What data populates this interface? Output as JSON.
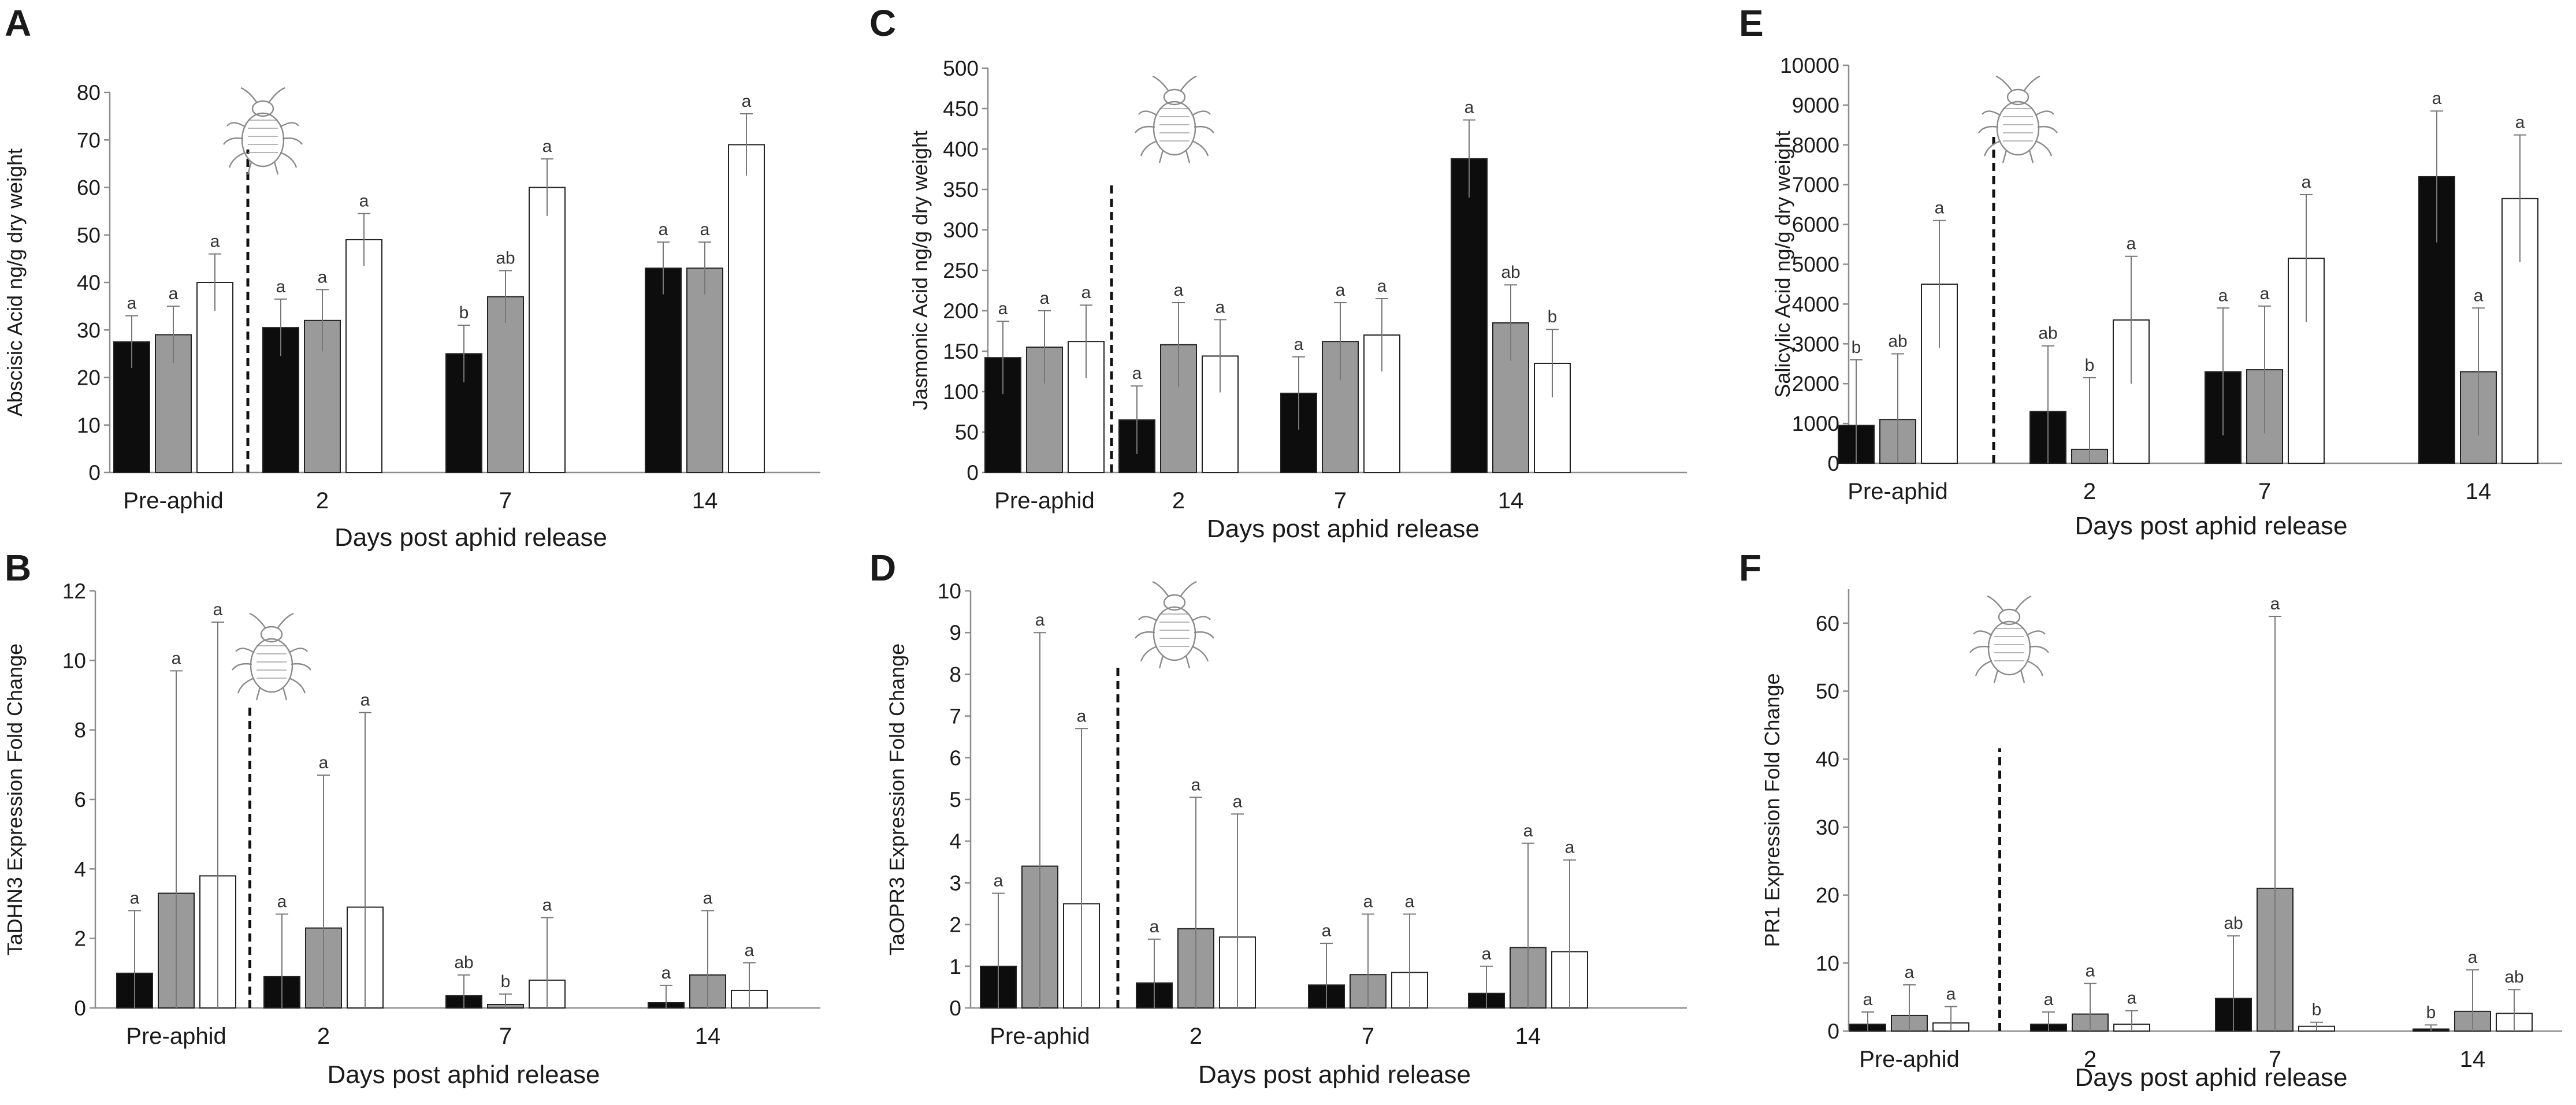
{
  "colors": {
    "control": "#0d0d0d",
    "treatment1": "#9a9a9a",
    "treatment2": "#ffffff",
    "axis": "#8c8c8c",
    "text": "#1a1a1a"
  },
  "icon": "aphid-icon",
  "chart_data": [
    {
      "panel": "A",
      "type": "bar",
      "ylabel": "Abscisic Acid ng/g dry weight",
      "xlabel": "Days post aphid release",
      "categories": [
        "Pre-aphid",
        "2",
        "7",
        "14"
      ],
      "ylim": [
        0,
        80
      ],
      "yticks": [
        0,
        10,
        20,
        30,
        40,
        50,
        60,
        70,
        80
      ],
      "series": [
        {
          "name": "series1",
          "values": [
            27.5,
            30.5,
            25,
            43
          ],
          "errors": [
            5.5,
            6,
            6,
            5.5
          ],
          "letters": [
            "a",
            "a",
            "b",
            "a"
          ]
        },
        {
          "name": "series2",
          "values": [
            29,
            32,
            37,
            43
          ],
          "errors": [
            6,
            6.5,
            5.5,
            5.5
          ],
          "letters": [
            "a",
            "a",
            "ab",
            "a"
          ]
        },
        {
          "name": "series3",
          "values": [
            40,
            49,
            60,
            69
          ],
          "errors": [
            6,
            5.5,
            6,
            6.5
          ],
          "letters": [
            "a",
            "a",
            "a",
            "a"
          ]
        }
      ]
    },
    {
      "panel": "B",
      "type": "bar",
      "ylabel": "TaDHN3 Expression Fold Change",
      "xlabel": "Days post aphid release",
      "categories": [
        "Pre-aphid",
        "2",
        "7",
        "14"
      ],
      "ylim": [
        0,
        12
      ],
      "yticks": [
        0,
        2,
        4,
        6,
        8,
        10,
        12
      ],
      "series": [
        {
          "name": "series1",
          "values": [
            1,
            0.9,
            0.35,
            0.15
          ],
          "errors": [
            1.8,
            1.8,
            0.6,
            0.5
          ],
          "letters": [
            "a",
            "a",
            "ab",
            "a"
          ]
        },
        {
          "name": "series2",
          "values": [
            3.3,
            2.3,
            0.1,
            0.95
          ],
          "errors": [
            6.4,
            4.4,
            0.3,
            1.85
          ],
          "letters": [
            "a",
            "a",
            "b",
            "a"
          ]
        },
        {
          "name": "series3",
          "values": [
            3.8,
            2.9,
            0.8,
            0.5
          ],
          "errors": [
            7.3,
            5.6,
            1.8,
            0.8
          ],
          "letters": [
            "a",
            "a",
            "a",
            "a"
          ]
        }
      ]
    },
    {
      "panel": "C",
      "type": "bar",
      "ylabel": "Jasmonic Acid ng/g dry weight",
      "xlabel": "Days post aphid release",
      "categories": [
        "Pre-aphid",
        "2",
        "7",
        "14"
      ],
      "ylim": [
        0,
        500
      ],
      "yticks": [
        0,
        50,
        100,
        150,
        200,
        250,
        300,
        350,
        400,
        450,
        500
      ],
      "series": [
        {
          "name": "series1",
          "values": [
            142,
            65,
            98,
            388
          ],
          "errors": [
            45,
            42,
            45,
            48
          ],
          "letters": [
            "a",
            "a",
            "a",
            "a"
          ]
        },
        {
          "name": "series2",
          "values": [
            155,
            158,
            162,
            185
          ],
          "errors": [
            45,
            52,
            48,
            47
          ],
          "letters": [
            "a",
            "a",
            "a",
            "ab"
          ]
        },
        {
          "name": "series3",
          "values": [
            162,
            144,
            170,
            135
          ],
          "errors": [
            45,
            45,
            45,
            42
          ],
          "letters": [
            "a",
            "a",
            "a",
            "b"
          ]
        }
      ]
    },
    {
      "panel": "D",
      "type": "bar",
      "ylabel": "TaOPR3 Expression Fold Change",
      "xlabel": "Days post aphid release",
      "categories": [
        "Pre-aphid",
        "2",
        "7",
        "14"
      ],
      "ylim": [
        0,
        10
      ],
      "yticks": [
        0,
        1,
        2,
        3,
        4,
        5,
        6,
        7,
        8,
        9,
        10
      ],
      "series": [
        {
          "name": "series1",
          "values": [
            1,
            0.6,
            0.55,
            0.35
          ],
          "errors": [
            1.75,
            1.05,
            1.0,
            0.65
          ],
          "letters": [
            "a",
            "a",
            "a",
            "a"
          ]
        },
        {
          "name": "series2",
          "values": [
            3.4,
            1.9,
            0.8,
            1.45
          ],
          "errors": [
            5.6,
            3.15,
            1.45,
            2.5
          ],
          "letters": [
            "a",
            "a",
            "a",
            "a"
          ]
        },
        {
          "name": "series3",
          "values": [
            2.5,
            1.7,
            0.85,
            1.35
          ],
          "errors": [
            4.2,
            2.95,
            1.4,
            2.2
          ],
          "letters": [
            "a",
            "a",
            "a",
            "a"
          ]
        }
      ]
    },
    {
      "panel": "E",
      "type": "bar",
      "ylabel": "Salicylic Acid ng/g dry weight",
      "xlabel": "Days post aphid release",
      "categories": [
        "Pre-aphid",
        "2",
        "7",
        "14"
      ],
      "ylim": [
        0,
        10000
      ],
      "yticks": [
        0,
        1000,
        2000,
        3000,
        4000,
        5000,
        6000,
        7000,
        8000,
        9000,
        10000
      ],
      "series": [
        {
          "name": "series1",
          "values": [
            950,
            1300,
            2300,
            7200
          ],
          "errors": [
            1650,
            1650,
            1600,
            1650
          ],
          "letters": [
            "b",
            "ab",
            "a",
            "a"
          ]
        },
        {
          "name": "series2",
          "values": [
            1100,
            350,
            2350,
            2300
          ],
          "errors": [
            1650,
            1800,
            1600,
            1600
          ],
          "letters": [
            "ab",
            "b",
            "a",
            "a"
          ]
        },
        {
          "name": "series3",
          "values": [
            4500,
            3600,
            5150,
            6650
          ],
          "errors": [
            1600,
            1600,
            1600,
            1600
          ],
          "letters": [
            "a",
            "a",
            "a",
            "a"
          ]
        }
      ]
    },
    {
      "panel": "F",
      "type": "bar",
      "ylabel": "PR1 Expression Fold Change",
      "xlabel": "Days post aphid release",
      "categories": [
        "Pre-aphid",
        "2",
        "7",
        "14"
      ],
      "ylim": [
        0,
        65
      ],
      "yticks": [
        0,
        10,
        20,
        30,
        40,
        50,
        60
      ],
      "series": [
        {
          "name": "series1",
          "values": [
            1,
            1,
            4.8,
            0.3
          ],
          "errors": [
            1.8,
            1.8,
            9.2,
            0.6
          ],
          "letters": [
            "a",
            "a",
            "ab",
            "b"
          ]
        },
        {
          "name": "series2",
          "values": [
            2.3,
            2.5,
            21,
            2.9
          ],
          "errors": [
            4.5,
            4.5,
            40,
            6.1
          ],
          "letters": [
            "a",
            "a",
            "a",
            "a"
          ]
        },
        {
          "name": "series3",
          "values": [
            1.2,
            1.0,
            0.7,
            2.6
          ],
          "errors": [
            2.4,
            2.0,
            0.6,
            3.5
          ],
          "letters": [
            "a",
            "a",
            "b",
            "ab"
          ]
        }
      ]
    }
  ]
}
